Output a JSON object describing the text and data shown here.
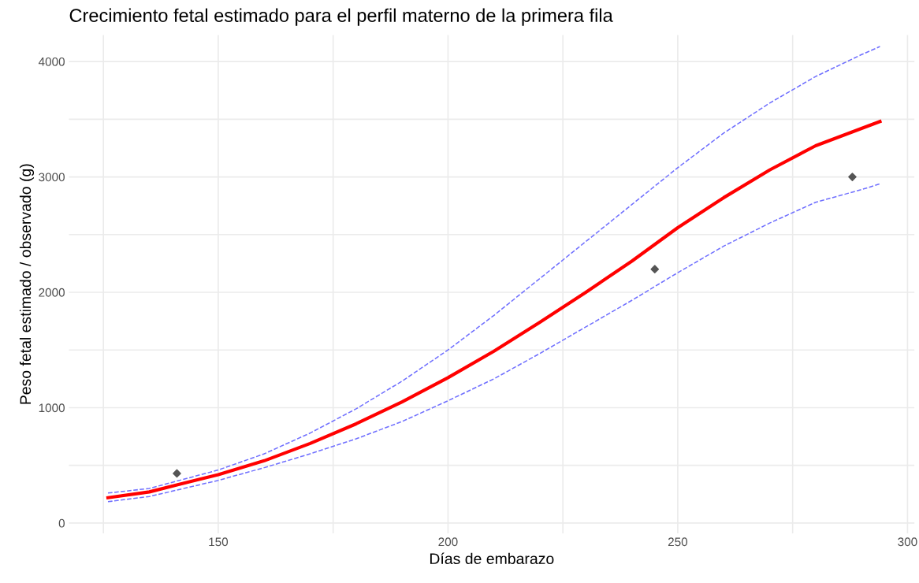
{
  "chart_data": {
    "type": "line",
    "title": "Crecimiento fetal estimado para el perfil materno de la primera fila",
    "xlabel": "Días de embarazo",
    "ylabel": "Peso fetal estimado / observado (g)",
    "xlim": [
      117.5,
      301.5
    ],
    "ylim": [
      -90,
      4230
    ],
    "xticks": [
      {
        "value": 125,
        "label": null
      },
      150,
      {
        "value": 175,
        "label": null
      },
      200,
      {
        "value": 225,
        "label": null
      },
      250,
      {
        "value": 275,
        "label": null
      },
      300
    ],
    "yticks": [
      0,
      {
        "value": 500,
        "label": null
      },
      1000,
      {
        "value": 1500,
        "label": null
      },
      2000,
      {
        "value": 2500,
        "label": null
      },
      3000,
      {
        "value": 3500,
        "label": null
      },
      4000
    ],
    "grid": true,
    "legend": false,
    "series": [
      {
        "color": "#7070ff",
        "line_style": "dashed",
        "x": [
          126,
          135,
          150,
          160,
          170,
          180,
          190,
          200,
          210,
          220,
          230,
          240,
          250,
          260,
          270,
          280,
          290,
          294
        ],
        "values": [
          260,
          300,
          460,
          600,
          780,
          990,
          1230,
          1500,
          1800,
          2120,
          2440,
          2760,
          3080,
          3380,
          3640,
          3870,
          4060,
          4130
        ]
      },
      {
        "color": "#7070ff",
        "line_style": "dashed",
        "x": [
          126,
          135,
          150,
          160,
          170,
          180,
          190,
          200,
          210,
          220,
          230,
          240,
          250,
          260,
          270,
          280,
          290,
          294
        ],
        "values": [
          185,
          230,
          370,
          480,
          600,
          730,
          880,
          1060,
          1250,
          1470,
          1700,
          1930,
          2170,
          2400,
          2600,
          2780,
          2890,
          2940
        ]
      },
      {
        "color": "#ff0000",
        "line_style": "solid",
        "x": [
          126,
          135,
          141,
          150,
          160,
          170,
          180,
          190,
          200,
          210,
          220,
          230,
          240,
          250,
          260,
          270,
          280,
          290,
          294
        ],
        "values": [
          220,
          270,
          330,
          420,
          540,
          690,
          860,
          1050,
          1260,
          1490,
          1740,
          2000,
          2270,
          2560,
          2820,
          3060,
          3270,
          3420,
          3480
        ]
      },
      {
        "type": "scatter",
        "color": "#555555",
        "marker": "diamond",
        "x": [
          141,
          245,
          288
        ],
        "values": [
          430,
          2200,
          3000
        ]
      }
    ]
  }
}
